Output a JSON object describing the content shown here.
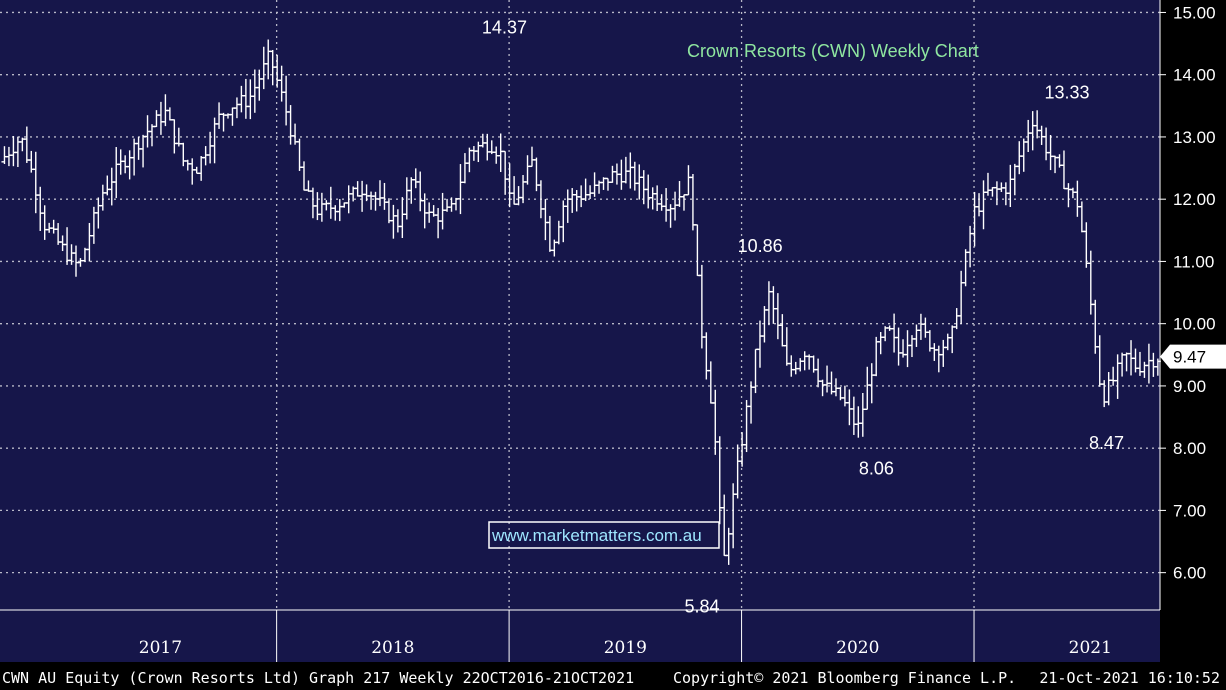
{
  "chart_data": {
    "type": "line",
    "title": "Crown Resorts (CWN) Weekly Chart",
    "watermark": "www.marketmatters.com.au",
    "colors": {
      "background": "#16164a",
      "bars": "#ffffff",
      "grid": "#b8b8c8",
      "title": "#8fe6a0",
      "watermark": "#9fe7ff"
    },
    "ylim": [
      5.4,
      15.2
    ],
    "yticks": [
      "15.00",
      "14.00",
      "13.00",
      "12.00",
      "11.00",
      "10.00",
      "9.00",
      "8.00",
      "7.00",
      "6.00"
    ],
    "ytick_values": [
      15,
      14,
      13,
      12,
      11,
      10,
      9,
      8,
      7,
      6
    ],
    "xlim": [
      2016.81,
      2021.8
    ],
    "xtick_labels": [
      "2017",
      "2018",
      "2019",
      "2020",
      "2021"
    ],
    "xtick_centers": [
      2017.5,
      2018.5,
      2019.5,
      2020.5,
      2021.5
    ],
    "year_dividers": [
      2018.0,
      2019.0,
      2020.0,
      2021.0
    ],
    "last_price_label": "9.47",
    "last_price": 9.47,
    "annotations": [
      {
        "text": "14.37",
        "x": 2018.98,
        "y": 14.37
      },
      {
        "text": "13.33",
        "x": 2021.4,
        "y": 13.33
      },
      {
        "text": "10.86",
        "x": 2020.08,
        "y": 10.86
      },
      {
        "text": "8.06",
        "x": 2020.58,
        "y": 8.06
      },
      {
        "text": "5.84",
        "x": 2019.83,
        "y": 5.84
      },
      {
        "text": "8.47",
        "x": 2021.57,
        "y": 8.47
      }
    ],
    "series": [
      {
        "x": [
          2016.81,
          2016.9,
          2016.95,
          2017.0,
          2017.08,
          2017.15,
          2017.25,
          2017.32,
          2017.42,
          2017.52,
          2017.6,
          2017.66,
          2017.75,
          2017.8,
          2017.88,
          2017.97,
          2018.05,
          2018.12,
          2018.18,
          2018.25,
          2018.3,
          2018.38,
          2018.45,
          2018.52,
          2018.58,
          2018.66,
          2018.75,
          2018.83,
          2018.92,
          2018.97,
          2019.01,
          2019.1,
          2019.18,
          2019.24,
          2019.35,
          2019.45,
          2019.52,
          2019.6,
          2019.7,
          2019.78,
          2019.82,
          2019.88,
          2019.92,
          2019.98,
          2020.03,
          2020.07,
          2020.12,
          2020.2,
          2020.28,
          2020.35,
          2020.43,
          2020.5,
          2020.58,
          2020.63,
          2020.68,
          2020.75,
          2020.83,
          2020.9,
          2021.0,
          2021.06,
          2021.15,
          2021.25,
          2021.3,
          2021.4,
          2021.45,
          2021.48,
          2021.55,
          2021.6,
          2021.65,
          2021.7,
          2021.75,
          2021.8
        ],
        "y": [
          12.6,
          13.0,
          12.4,
          11.6,
          11.2,
          10.9,
          12.1,
          12.5,
          13.0,
          13.4,
          12.6,
          12.5,
          13.3,
          13.5,
          13.6,
          14.3,
          13.3,
          12.1,
          11.8,
          11.9,
          12.0,
          12.2,
          11.9,
          11.6,
          12.3,
          11.7,
          11.8,
          12.8,
          12.9,
          12.7,
          11.8,
          12.6,
          11.2,
          12.0,
          12.1,
          12.4,
          12.4,
          12.1,
          11.9,
          12.3,
          10.1,
          8.5,
          6.1,
          7.6,
          8.8,
          9.7,
          10.5,
          9.2,
          9.6,
          9.0,
          8.8,
          8.3,
          9.6,
          9.9,
          9.5,
          10.0,
          9.6,
          9.7,
          11.8,
          12.1,
          12.2,
          13.3,
          12.9,
          12.2,
          11.9,
          11.0,
          8.8,
          9.1,
          9.5,
          9.3,
          9.4,
          9.47
        ]
      }
    ]
  },
  "footer": {
    "left": "CWN AU Equity (Crown Resorts Ltd) Graph 217  Weekly 22OCT2016-21OCT2021",
    "middle": "Copyright© 2021 Bloomberg Finance L.P.",
    "right": "21-Oct-2021 16:10:52"
  }
}
